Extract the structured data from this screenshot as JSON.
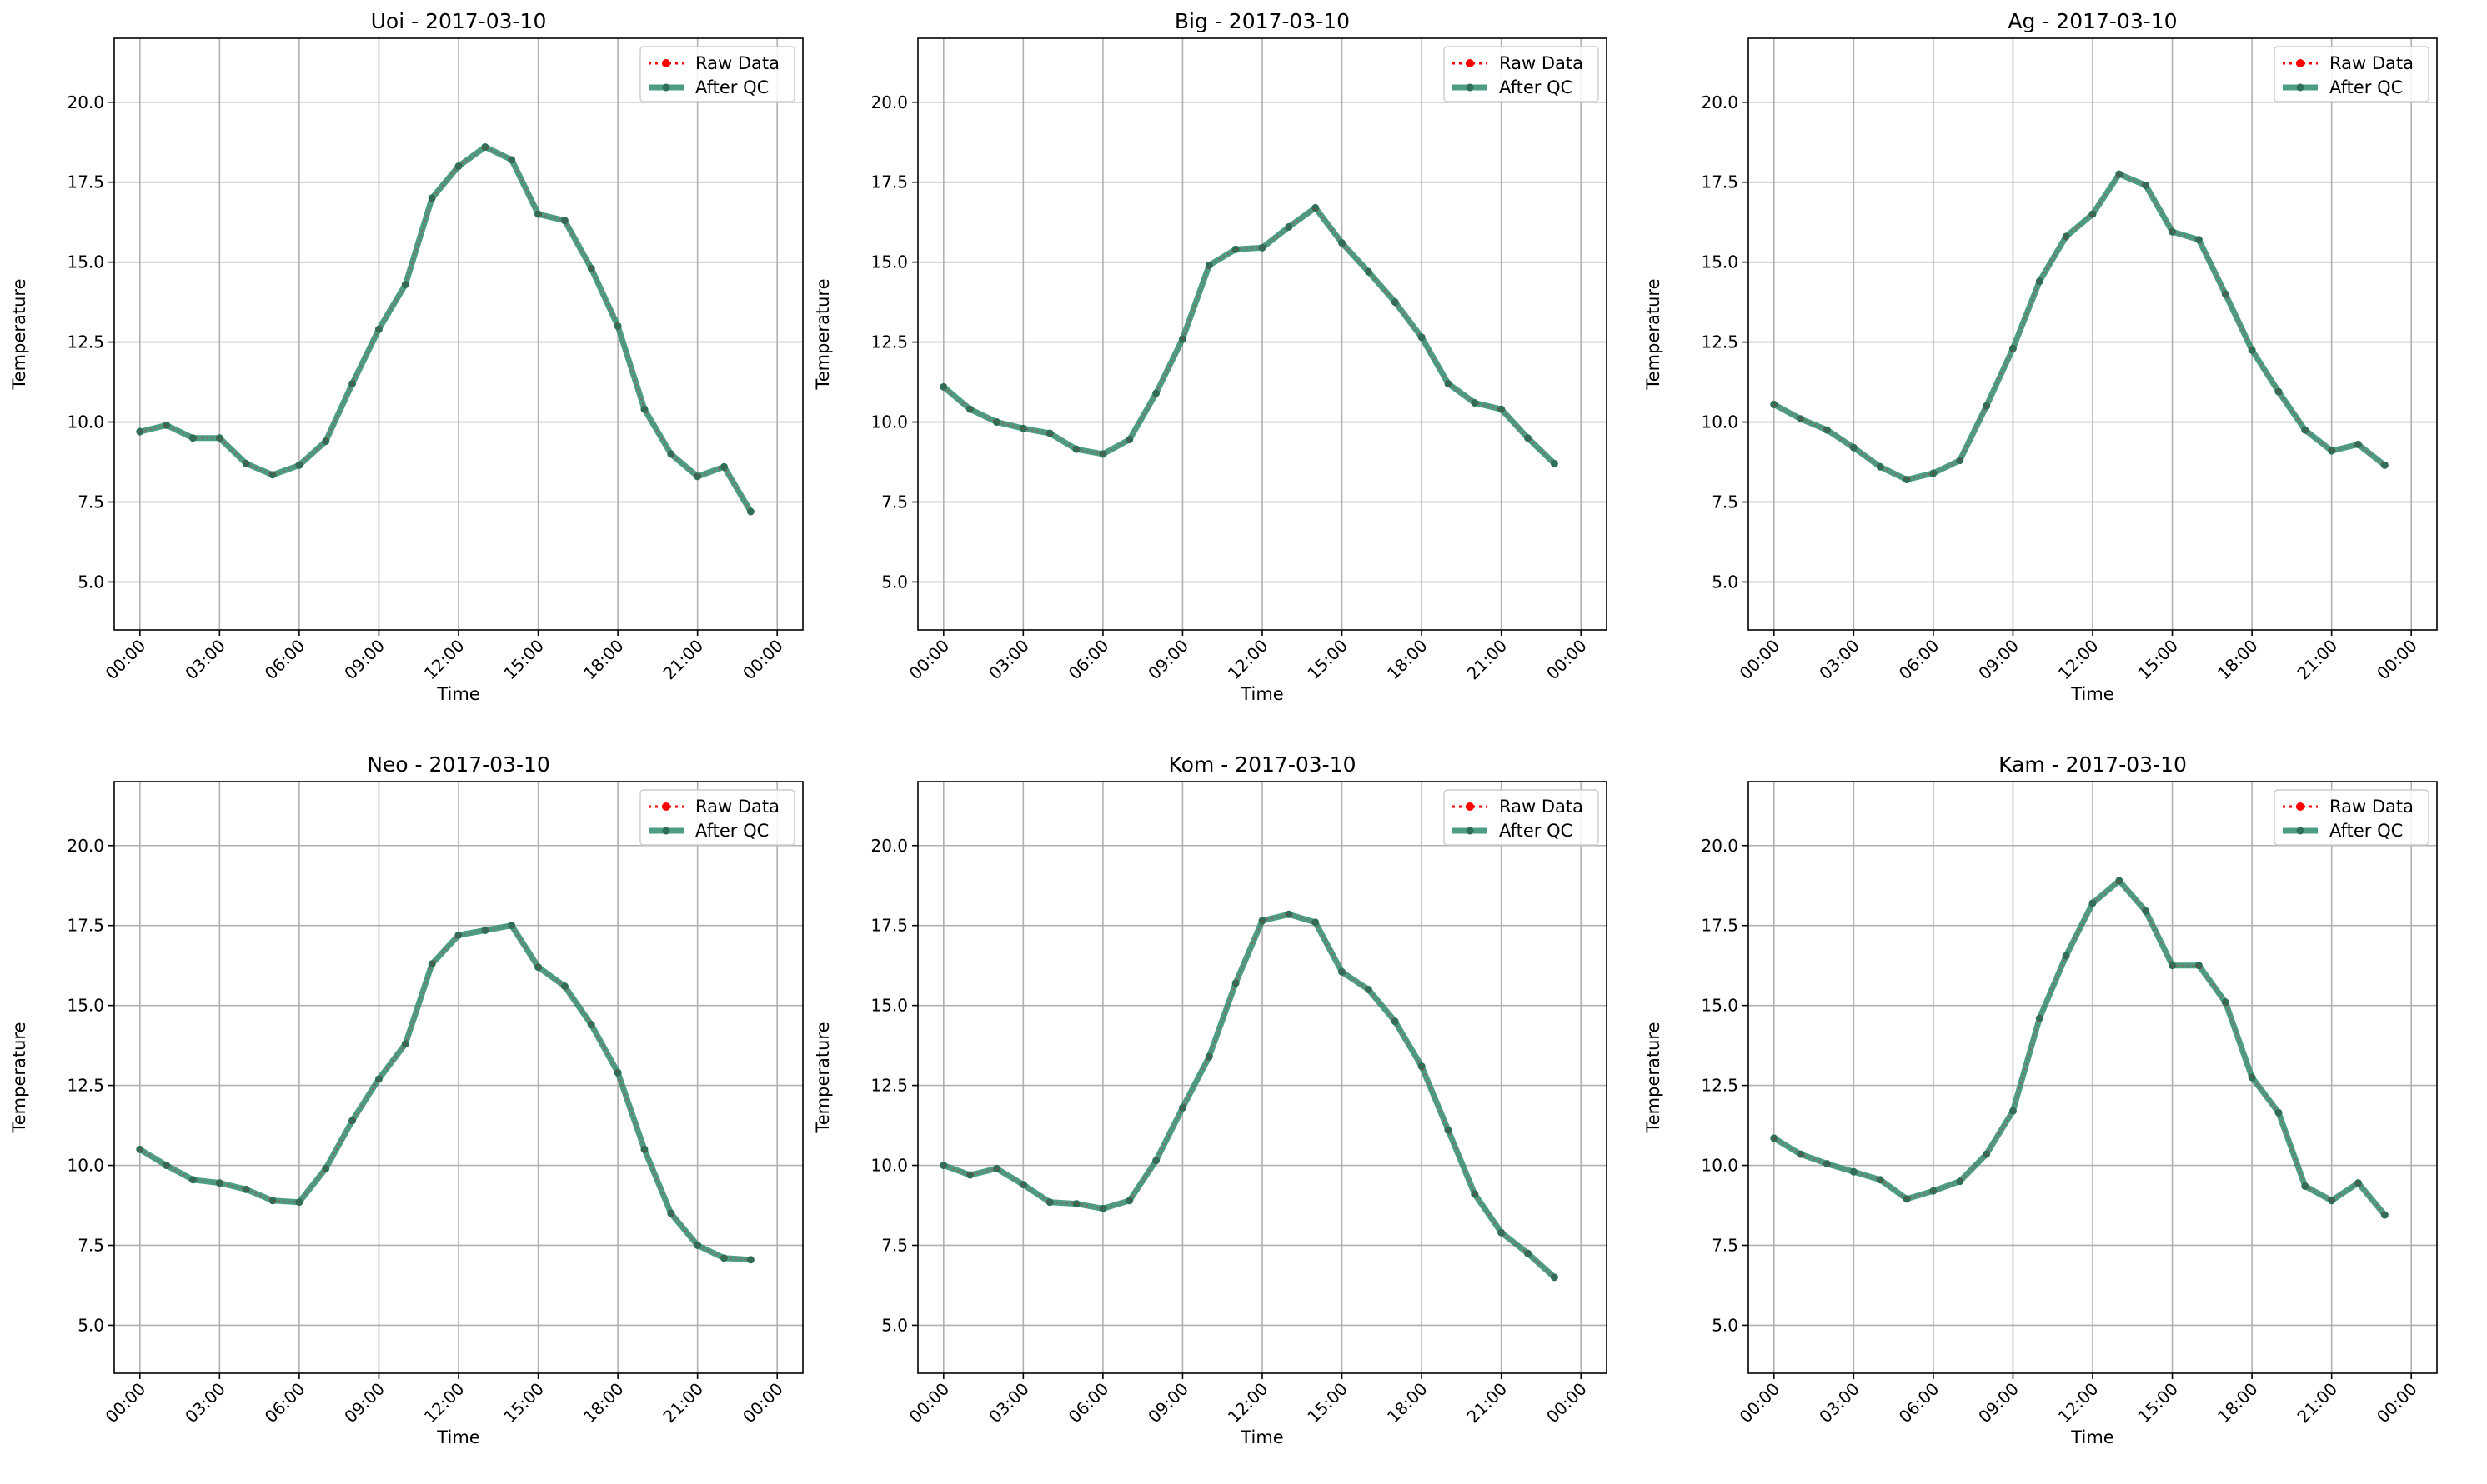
{
  "colors": {
    "raw": "#ff0000",
    "after_qc": "#2e8b6e",
    "after_qc_marker": "#2f6f58",
    "grid": "#b0b0b0",
    "axes": "#000000",
    "background": "#ffffff"
  },
  "chart_data": [
    {
      "type": "line",
      "title": "Uoi - 2017-03-10",
      "xlabel": "Time",
      "ylabel": "Temperature",
      "xlim": [
        "23:02 prev day",
        "00:58 next day"
      ],
      "ylim": [
        3.5,
        22.0
      ],
      "yticks": [
        "5.0",
        "7.5",
        "10.0",
        "12.5",
        "15.0",
        "17.5",
        "20.0"
      ],
      "xticks": [
        "00:00",
        "03:00",
        "06:00",
        "09:00",
        "12:00",
        "15:00",
        "18:00",
        "21:00",
        "00:00"
      ],
      "grid": true,
      "legend_position": "top-right",
      "x": [
        "00:00",
        "01:00",
        "02:00",
        "03:00",
        "04:00",
        "05:00",
        "06:00",
        "07:00",
        "08:00",
        "09:00",
        "10:00",
        "11:00",
        "12:00",
        "13:00",
        "14:00",
        "15:00",
        "16:00",
        "17:00",
        "18:00",
        "19:00",
        "20:00",
        "21:00",
        "22:00",
        "23:00"
      ],
      "series": [
        {
          "name": "Raw Data",
          "values": [
            9.7,
            9.9,
            9.5,
            9.5,
            8.7,
            8.35,
            8.65,
            9.4,
            11.2,
            12.9,
            14.3,
            17.0,
            18.0,
            18.6,
            18.2,
            16.5,
            16.3,
            14.8,
            13.0,
            10.4,
            9.0,
            8.3,
            8.6,
            7.2
          ]
        },
        {
          "name": "After QC",
          "values": [
            9.7,
            9.9,
            9.5,
            9.5,
            8.7,
            8.35,
            8.65,
            9.4,
            11.2,
            12.9,
            14.3,
            17.0,
            18.0,
            18.6,
            18.2,
            16.5,
            16.3,
            14.8,
            13.0,
            10.4,
            9.0,
            8.3,
            8.6,
            7.2
          ]
        }
      ]
    },
    {
      "type": "line",
      "title": "Big - 2017-03-10",
      "xlabel": "Time",
      "ylabel": "Temperature",
      "ylim": [
        3.5,
        22.0
      ],
      "yticks": [
        "5.0",
        "7.5",
        "10.0",
        "12.5",
        "15.0",
        "17.5",
        "20.0"
      ],
      "xticks": [
        "00:00",
        "03:00",
        "06:00",
        "09:00",
        "12:00",
        "15:00",
        "18:00",
        "21:00",
        "00:00"
      ],
      "grid": true,
      "legend_position": "top-right",
      "x": [
        "00:00",
        "01:00",
        "02:00",
        "03:00",
        "04:00",
        "05:00",
        "06:00",
        "07:00",
        "08:00",
        "09:00",
        "10:00",
        "11:00",
        "12:00",
        "13:00",
        "14:00",
        "15:00",
        "16:00",
        "17:00",
        "18:00",
        "19:00",
        "20:00",
        "21:00",
        "22:00",
        "23:00"
      ],
      "series": [
        {
          "name": "Raw Data",
          "values": [
            11.1,
            10.4,
            10.0,
            9.8,
            9.65,
            9.15,
            9.0,
            9.45,
            10.9,
            12.6,
            14.9,
            15.4,
            15.45,
            16.1,
            16.7,
            15.6,
            14.7,
            13.75,
            12.65,
            11.2,
            10.6,
            10.4,
            9.5,
            8.7
          ]
        },
        {
          "name": "After QC",
          "values": [
            11.1,
            10.4,
            10.0,
            9.8,
            9.65,
            9.15,
            9.0,
            9.45,
            10.9,
            12.6,
            14.9,
            15.4,
            15.45,
            16.1,
            16.7,
            15.6,
            14.7,
            13.75,
            12.65,
            11.2,
            10.6,
            10.4,
            9.5,
            8.7
          ]
        }
      ]
    },
    {
      "type": "line",
      "title": "Ag - 2017-03-10",
      "xlabel": "Time",
      "ylabel": "Temperature",
      "ylim": [
        3.5,
        22.0
      ],
      "yticks": [
        "5.0",
        "7.5",
        "10.0",
        "12.5",
        "15.0",
        "17.5",
        "20.0"
      ],
      "xticks": [
        "00:00",
        "03:00",
        "06:00",
        "09:00",
        "12:00",
        "15:00",
        "18:00",
        "21:00",
        "00:00"
      ],
      "grid": true,
      "legend_position": "top-right",
      "x": [
        "00:00",
        "01:00",
        "02:00",
        "03:00",
        "04:00",
        "05:00",
        "06:00",
        "07:00",
        "08:00",
        "09:00",
        "10:00",
        "11:00",
        "12:00",
        "13:00",
        "14:00",
        "15:00",
        "16:00",
        "17:00",
        "18:00",
        "19:00",
        "20:00",
        "21:00",
        "22:00",
        "23:00"
      ],
      "series": [
        {
          "name": "Raw Data",
          "values": [
            10.55,
            10.1,
            9.75,
            9.2,
            8.6,
            8.2,
            8.4,
            8.8,
            10.5,
            12.3,
            14.4,
            15.8,
            16.5,
            17.75,
            17.4,
            15.95,
            15.7,
            14.0,
            12.25,
            10.95,
            9.75,
            9.1,
            9.3,
            8.65
          ]
        },
        {
          "name": "After QC",
          "values": [
            10.55,
            10.1,
            9.75,
            9.2,
            8.6,
            8.2,
            8.4,
            8.8,
            10.5,
            12.3,
            14.4,
            15.8,
            16.5,
            17.75,
            17.4,
            15.95,
            15.7,
            14.0,
            12.25,
            10.95,
            9.75,
            9.1,
            9.3,
            8.65
          ]
        }
      ]
    },
    {
      "type": "line",
      "title": "Neo - 2017-03-10",
      "xlabel": "Time",
      "ylabel": "Temperature",
      "ylim": [
        3.5,
        22.0
      ],
      "yticks": [
        "5.0",
        "7.5",
        "10.0",
        "12.5",
        "15.0",
        "17.5",
        "20.0"
      ],
      "xticks": [
        "00:00",
        "03:00",
        "06:00",
        "09:00",
        "12:00",
        "15:00",
        "18:00",
        "21:00",
        "00:00"
      ],
      "grid": true,
      "legend_position": "top-right",
      "x": [
        "00:00",
        "01:00",
        "02:00",
        "03:00",
        "04:00",
        "05:00",
        "06:00",
        "07:00",
        "08:00",
        "09:00",
        "10:00",
        "11:00",
        "12:00",
        "13:00",
        "14:00",
        "15:00",
        "16:00",
        "17:00",
        "18:00",
        "19:00",
        "20:00",
        "21:00",
        "22:00",
        "23:00"
      ],
      "series": [
        {
          "name": "Raw Data",
          "values": [
            10.5,
            10.0,
            9.55,
            9.45,
            9.25,
            8.9,
            8.85,
            9.9,
            11.4,
            12.7,
            13.8,
            16.3,
            17.2,
            17.35,
            17.5,
            16.2,
            15.6,
            14.4,
            12.9,
            10.5,
            8.5,
            7.5,
            7.1,
            7.05
          ]
        },
        {
          "name": "After QC",
          "values": [
            10.5,
            10.0,
            9.55,
            9.45,
            9.25,
            8.9,
            8.85,
            9.9,
            11.4,
            12.7,
            13.8,
            16.3,
            17.2,
            17.35,
            17.5,
            16.2,
            15.6,
            14.4,
            12.9,
            10.5,
            8.5,
            7.5,
            7.1,
            7.05
          ]
        }
      ]
    },
    {
      "type": "line",
      "title": "Kom - 2017-03-10",
      "xlabel": "Time",
      "ylabel": "Temperature",
      "ylim": [
        3.5,
        22.0
      ],
      "yticks": [
        "5.0",
        "7.5",
        "10.0",
        "12.5",
        "15.0",
        "17.5",
        "20.0"
      ],
      "xticks": [
        "00:00",
        "03:00",
        "06:00",
        "09:00",
        "12:00",
        "15:00",
        "18:00",
        "21:00",
        "00:00"
      ],
      "grid": true,
      "legend_position": "top-right",
      "x": [
        "00:00",
        "01:00",
        "02:00",
        "03:00",
        "04:00",
        "05:00",
        "06:00",
        "07:00",
        "08:00",
        "09:00",
        "10:00",
        "11:00",
        "12:00",
        "13:00",
        "14:00",
        "15:00",
        "16:00",
        "17:00",
        "18:00",
        "19:00",
        "20:00",
        "21:00",
        "22:00",
        "23:00"
      ],
      "series": [
        {
          "name": "Raw Data",
          "values": [
            10.0,
            9.7,
            9.9,
            9.4,
            8.85,
            8.8,
            8.65,
            8.9,
            10.15,
            11.8,
            13.4,
            15.7,
            17.65,
            17.85,
            17.6,
            16.05,
            15.5,
            14.5,
            13.1,
            11.1,
            9.1,
            7.9,
            7.25,
            6.5
          ]
        },
        {
          "name": "After QC",
          "values": [
            10.0,
            9.7,
            9.9,
            9.4,
            8.85,
            8.8,
            8.65,
            8.9,
            10.15,
            11.8,
            13.4,
            15.7,
            17.65,
            17.85,
            17.6,
            16.05,
            15.5,
            14.5,
            13.1,
            11.1,
            9.1,
            7.9,
            7.25,
            6.5
          ]
        }
      ]
    },
    {
      "type": "line",
      "title": "Kam - 2017-03-10",
      "xlabel": "Time",
      "ylabel": "Temperature",
      "ylim": [
        3.5,
        22.0
      ],
      "yticks": [
        "5.0",
        "7.5",
        "10.0",
        "12.5",
        "15.0",
        "17.5",
        "20.0"
      ],
      "xticks": [
        "00:00",
        "03:00",
        "06:00",
        "09:00",
        "12:00",
        "15:00",
        "18:00",
        "21:00",
        "00:00"
      ],
      "grid": true,
      "legend_position": "top-right",
      "x": [
        "00:00",
        "01:00",
        "02:00",
        "03:00",
        "04:00",
        "05:00",
        "06:00",
        "07:00",
        "08:00",
        "09:00",
        "10:00",
        "11:00",
        "12:00",
        "13:00",
        "14:00",
        "15:00",
        "16:00",
        "17:00",
        "18:00",
        "19:00",
        "20:00",
        "21:00",
        "22:00",
        "23:00"
      ],
      "series": [
        {
          "name": "Raw Data",
          "values": [
            10.85,
            10.35,
            10.05,
            9.8,
            9.55,
            8.95,
            9.2,
            9.5,
            10.35,
            11.7,
            14.6,
            16.55,
            18.2,
            18.9,
            17.95,
            16.25,
            16.25,
            15.1,
            12.75,
            11.65,
            9.35,
            8.9,
            9.45,
            8.45
          ]
        },
        {
          "name": "After QC",
          "values": [
            10.85,
            10.35,
            10.05,
            9.8,
            9.55,
            8.95,
            9.2,
            9.5,
            10.35,
            11.7,
            14.6,
            16.55,
            18.2,
            18.9,
            17.95,
            16.25,
            16.25,
            15.1,
            12.75,
            11.65,
            9.35,
            8.9,
            9.45,
            8.45
          ]
        }
      ]
    }
  ]
}
